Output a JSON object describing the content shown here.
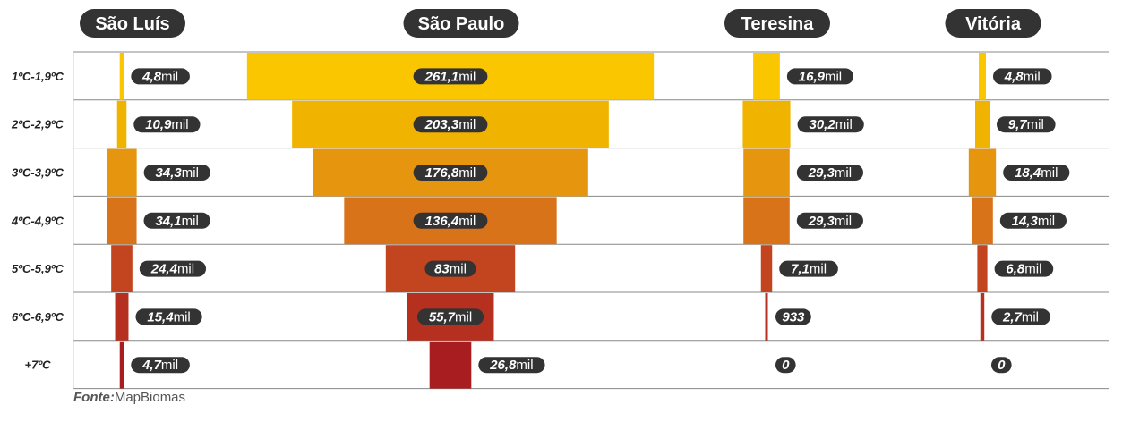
{
  "colors": {
    "rows": [
      "#F9C600",
      "#F0B400",
      "#E6950E",
      "#D9731A",
      "#C2451F",
      "#B5301F",
      "#A81E20"
    ],
    "pill": "#333333",
    "grid": "#888888"
  },
  "source": {
    "label": "Fonte:",
    "value": "MapBiomas"
  },
  "chart_data": {
    "type": "bar",
    "categories": [
      "1ºC-1,9ºC",
      "2ºC-2,9ºC",
      "3ºC-3,9ºC",
      "4ºC-4,9ºC",
      "5ºC-5,9ºC",
      "6ºC-6,9ºC",
      "+7ºC"
    ],
    "series": [
      {
        "name": "São Luís",
        "values": [
          4.8,
          10.9,
          34.3,
          34.1,
          24.4,
          15.4,
          4.7
        ],
        "labels": [
          "4,8",
          "10,9",
          "34,3",
          "34,1",
          "24,4",
          "15,4",
          "4,7"
        ],
        "units": [
          "mil",
          "mil",
          "mil",
          "mil",
          "mil",
          "mil",
          "mil"
        ]
      },
      {
        "name": "São Paulo",
        "values": [
          261.1,
          203.3,
          176.8,
          136.4,
          83,
          55.7,
          26.8
        ],
        "labels": [
          "261,1",
          "203,3",
          "176,8",
          "136,4",
          "83",
          "55,7",
          "26,8"
        ],
        "units": [
          "mil",
          "mil",
          "mil",
          "mil",
          "mil",
          "mil",
          "mil"
        ]
      },
      {
        "name": "Teresina",
        "values": [
          16.9,
          30.2,
          29.3,
          29.3,
          7.1,
          0.933,
          0
        ],
        "labels": [
          "16,9",
          "30,2",
          "29,3",
          "29,3",
          "7,1",
          "933",
          "0"
        ],
        "units": [
          "mil",
          "mil",
          "mil",
          "mil",
          "mil",
          "",
          ""
        ]
      },
      {
        "name": "Vitória",
        "values": [
          4.8,
          9.7,
          18.4,
          14.3,
          6.8,
          2.7,
          0
        ],
        "labels": [
          "4,8",
          "9,7",
          "18,4",
          "14,3",
          "6,8",
          "2,7",
          "0"
        ],
        "units": [
          "mil",
          "mil",
          "mil",
          "mil",
          "mil",
          "mil",
          ""
        ]
      }
    ]
  }
}
